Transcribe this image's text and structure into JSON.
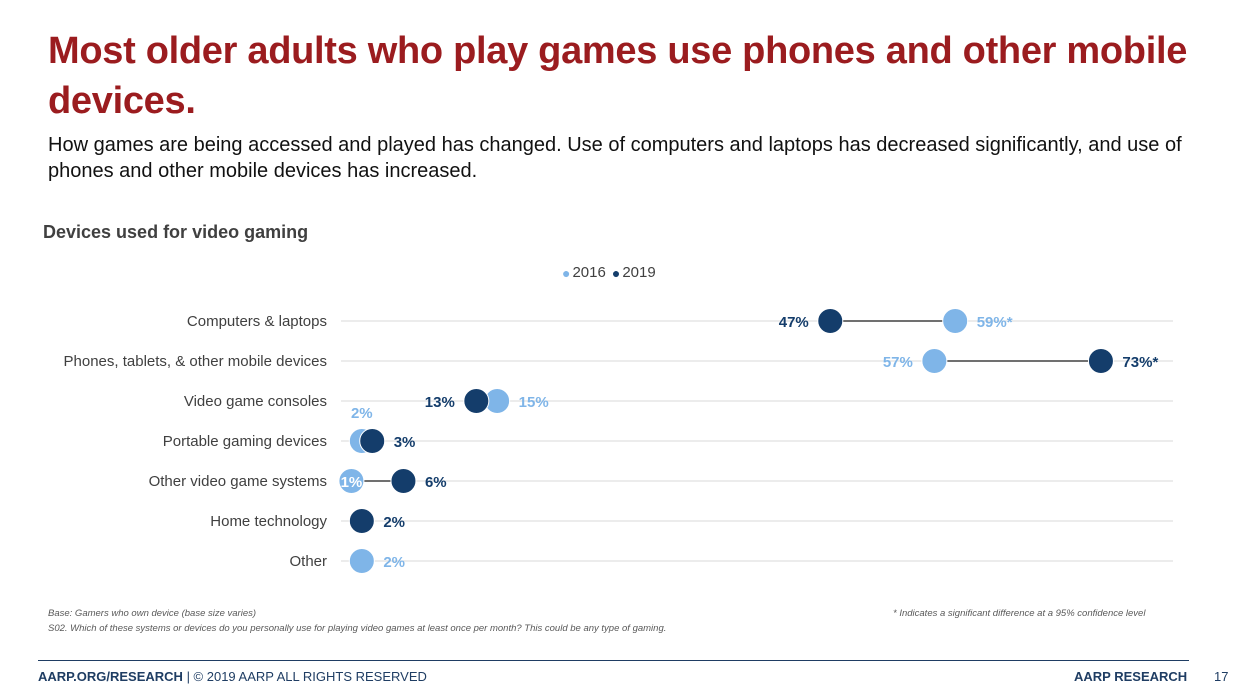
{
  "title": "Most older adults who play games use phones and other mobile devices.",
  "subtitle": "How games are being accessed and played has changed. Use of computers and laptops has decreased significantly, and use of phones and other mobile devices has increased.",
  "colors": {
    "series_2016": "#7fb5e8",
    "series_2019": "#143d6b",
    "title": "#9b1c1f",
    "connector": "#404040",
    "grid": "#d9d9d9"
  },
  "chart_data": {
    "type": "scatter",
    "title": "Devices used for video gaming",
    "legend_position": "top-center",
    "grid": true,
    "xlim": [
      0,
      75
    ],
    "categories": [
      "Computers & laptops",
      "Phones, tablets, & other mobile devices",
      "Video game consoles",
      "Portable gaming devices",
      "Other video game systems",
      "Home technology",
      "Other"
    ],
    "series": [
      {
        "name": "2016",
        "values": [
          59,
          57,
          15,
          2,
          1,
          null,
          2
        ],
        "labels": [
          "59%*",
          "57%",
          "15%",
          "2%",
          "1%",
          "",
          "2%"
        ]
      },
      {
        "name": "2019",
        "values": [
          47,
          73,
          13,
          3,
          6,
          2,
          null
        ],
        "labels": [
          "47%",
          "73%*",
          "13%",
          "3%",
          "6%",
          "2%",
          ""
        ]
      }
    ]
  },
  "footnotes": {
    "base": "Base:  Gamers who own device (base size varies)",
    "question": "S02. Which of these systems or devices do you personally use for playing video games at least once per month? This could be any type of gaming.",
    "significance": "* Indicates a significant difference at a 95% confidence level"
  },
  "footer": {
    "site": "AARP.ORG/RESEARCH",
    "copyright": " | © 2019 AARP ALL RIGHTS RESERVED",
    "brand": "AARP RESEARCH",
    "page": "17"
  }
}
